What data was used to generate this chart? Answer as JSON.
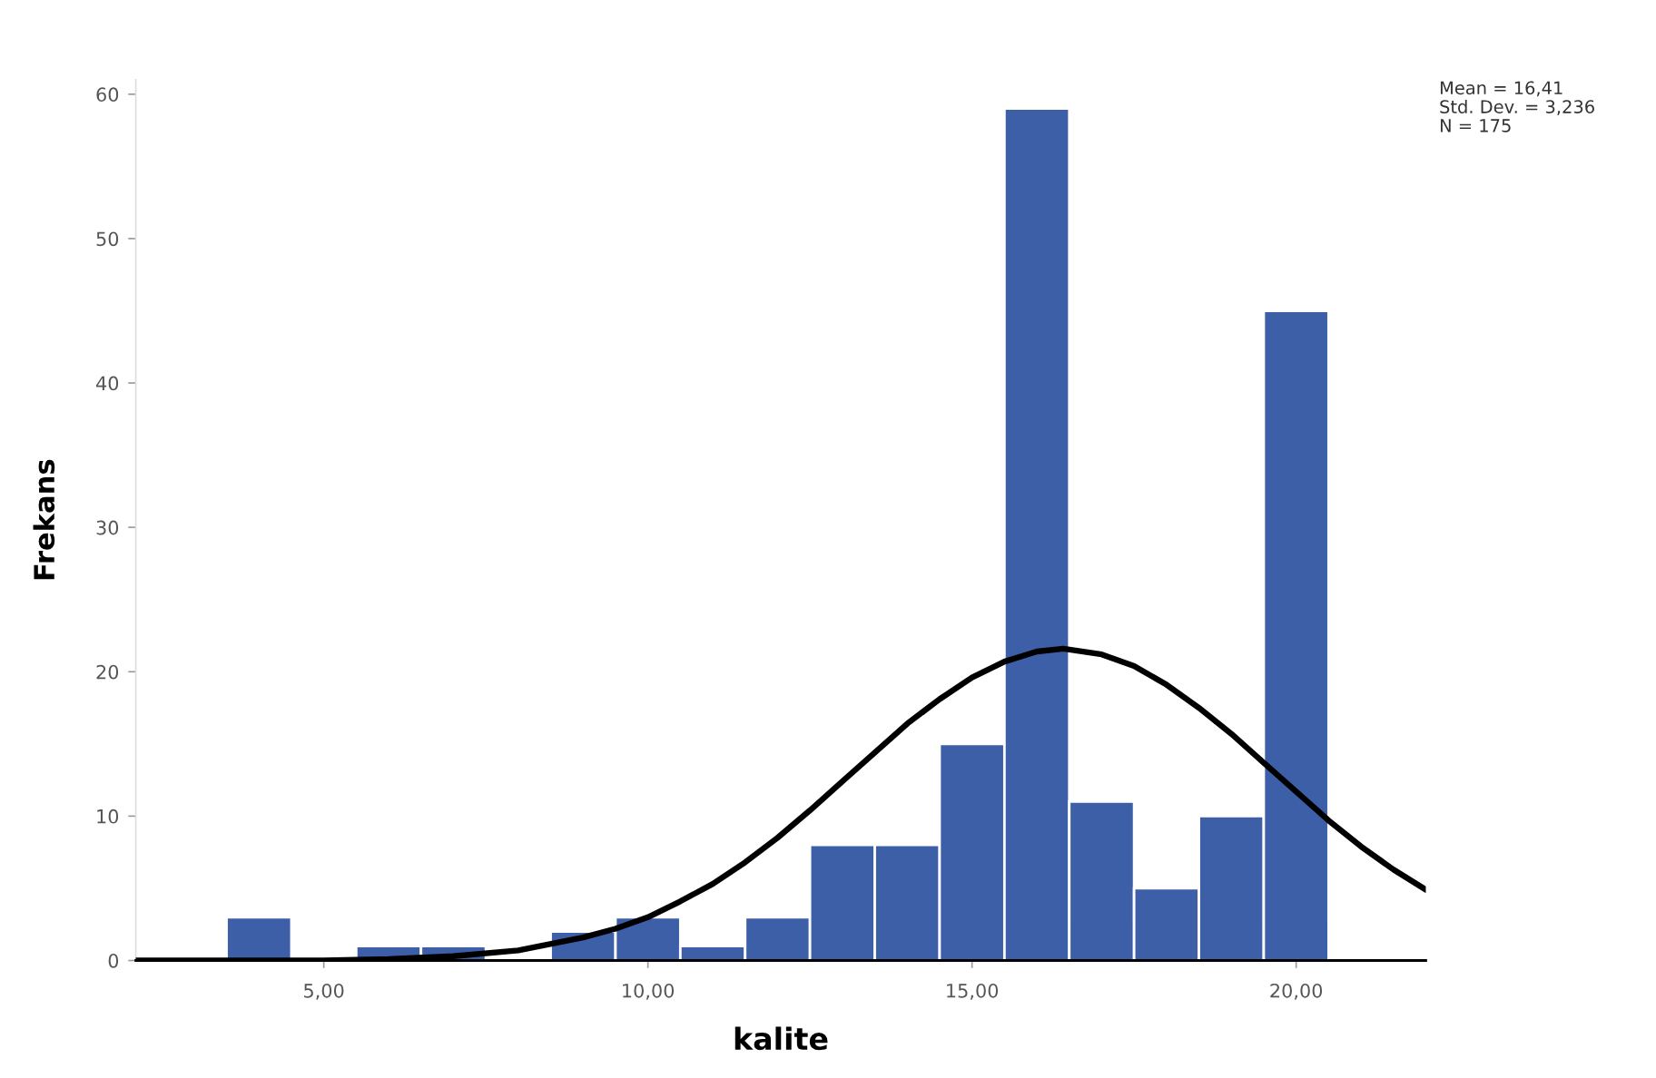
{
  "chart_data": {
    "type": "histogram",
    "xlabel": "kalite",
    "ylabel": "Frekans",
    "bins": [
      3.5,
      4.5,
      5.5,
      6.5,
      7.5,
      8.5,
      9.5,
      10.5,
      11.5,
      12.5,
      13.5,
      14.5,
      15.5,
      16.5,
      17.5,
      18.5,
      19.5,
      20.5
    ],
    "series": [
      {
        "color": "#3d5fa8",
        "values": [
          3,
          0,
          1,
          1,
          0,
          2,
          3,
          1,
          3,
          8,
          8,
          15,
          59,
          11,
          5,
          10,
          45
        ]
      },
      {
        "type": "line",
        "color": "#000000",
        "line_style": "solid",
        "x": [
          2.1,
          3,
          4,
          5,
          6,
          7,
          8,
          9,
          9.5,
          10,
          10.5,
          11,
          11.5,
          12,
          12.5,
          13,
          13.5,
          14,
          14.5,
          15,
          15.5,
          16,
          16.41,
          17,
          17.5,
          18,
          18.5,
          19,
          19.5,
          20,
          20.5,
          21,
          21.5,
          22
        ],
        "values": [
          0,
          0,
          0,
          0,
          0.1,
          0.3,
          0.7,
          1.6,
          2.2,
          3.0,
          4.1,
          5.3,
          6.8,
          8.5,
          10.4,
          12.4,
          14.4,
          16.4,
          18.1,
          19.6,
          20.7,
          21.4,
          21.6,
          21.2,
          20.4,
          19.1,
          17.5,
          15.7,
          13.7,
          11.7,
          9.7,
          7.9,
          6.3,
          4.9
        ]
      }
    ],
    "xlim": [
      2.1,
      22
    ],
    "xticks": [
      {
        "value": 5,
        "label": "5,00"
      },
      {
        "value": 10,
        "label": "10,00"
      },
      {
        "value": 15,
        "label": "15,00"
      },
      {
        "value": 20,
        "label": "20,00"
      }
    ],
    "ylim": [
      0,
      61
    ],
    "yticks": [
      0,
      10,
      20,
      30,
      40,
      50,
      60
    ],
    "annotations": [
      "Mean = 16,41",
      "Std. Dev. = 3,236",
      "N = 175"
    ],
    "grid": false
  }
}
